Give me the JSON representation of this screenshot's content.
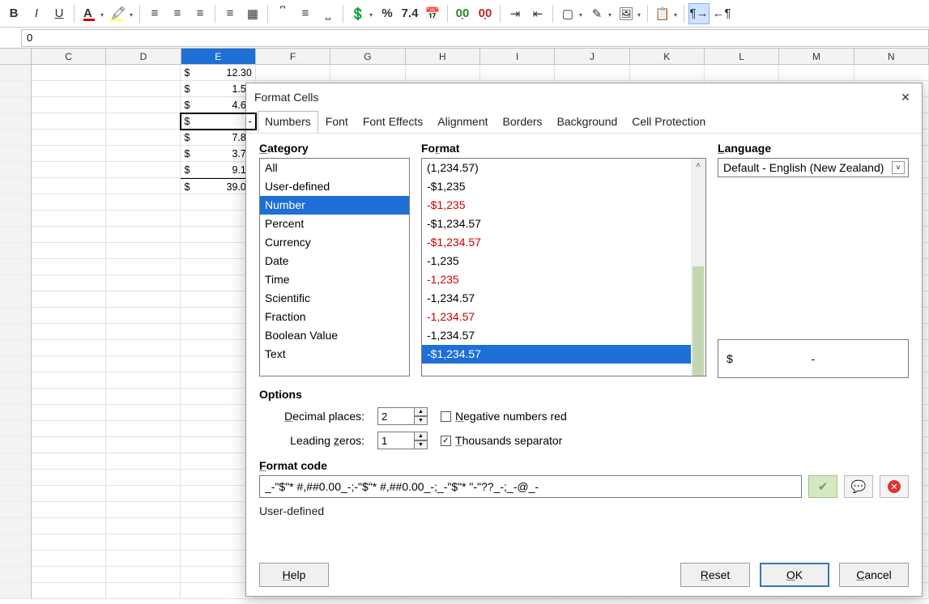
{
  "toolbar": {
    "bold": "B",
    "italic": "I",
    "underline": "U",
    "fontcolor_bar": "#d00000",
    "highlight_bar": "#ffff66",
    "percent": "%",
    "num": "7.4",
    "cal": "📅",
    "dec_add": "0.0",
    "dec_rem": "0.0"
  },
  "formula": {
    "value": "0"
  },
  "columns": [
    "C",
    "D",
    "E",
    "F",
    "G",
    "H",
    "I",
    "J",
    "K",
    "L",
    "M",
    "N"
  ],
  "active_col_index": 2,
  "cells": [
    {
      "cur": "$",
      "val": "12.30"
    },
    {
      "cur": "$",
      "val": "1.50"
    },
    {
      "cur": "$",
      "val": "4.60"
    },
    {
      "cur": "$",
      "val": "-",
      "cursor": true
    },
    {
      "cur": "$",
      "val": "7.80"
    },
    {
      "cur": "$",
      "val": "3.70"
    },
    {
      "cur": "$",
      "val": "9.10"
    },
    {
      "cur": "$",
      "val": "39.00",
      "top_border": true
    }
  ],
  "dialog": {
    "title": "Format Cells",
    "tabs": [
      "Numbers",
      "Font",
      "Font Effects",
      "Alignment",
      "Borders",
      "Background",
      "Cell Protection"
    ],
    "category_label": "Category",
    "format_label": "Format",
    "language_label": "Language",
    "categories": [
      "All",
      "User-defined",
      "Number",
      "Percent",
      "Currency",
      "Date",
      "Time",
      "Scientific",
      "Fraction",
      "Boolean Value",
      "Text"
    ],
    "category_selected": 2,
    "formats": [
      {
        "t": "(1,234.57)",
        "red": false
      },
      {
        "t": "-$1,235",
        "red": false
      },
      {
        "t": "-$1,235",
        "red": true
      },
      {
        "t": "-$1,234.57",
        "red": false
      },
      {
        "t": "-$1,234.57",
        "red": true
      },
      {
        "t": "-1,235",
        "red": false
      },
      {
        "t": "-1,235",
        "red": true
      },
      {
        "t": "-1,234.57",
        "red": false
      },
      {
        "t": "-1,234.57",
        "red": true
      },
      {
        "t": "-1,234.57",
        "red": false
      },
      {
        "t": "-$1,234.57",
        "red": false,
        "sel": true
      }
    ],
    "language_value": "Default - English (New Zealand)",
    "preview": {
      "cur": "$",
      "val": "-"
    },
    "options_label": "Options",
    "decimal_places_label": "Decimal places:",
    "decimal_places": "2",
    "leading_zeros_label": "Leading zeros:",
    "leading_zeros": "1",
    "neg_red_label": "Negative numbers red",
    "neg_red_checked": false,
    "thousands_label": "Thousands separator",
    "thousands_checked": true,
    "format_code_label": "Format code",
    "format_code": "_-\"$\"* #,##0.00_-;-\"$\"* #,##0.00_-;_-\"$\"* \"-\"??_-;_-@_-",
    "userdef_note": "User-defined",
    "help": "Help",
    "reset": "Reset",
    "ok": "OK",
    "cancel": "Cancel"
  }
}
